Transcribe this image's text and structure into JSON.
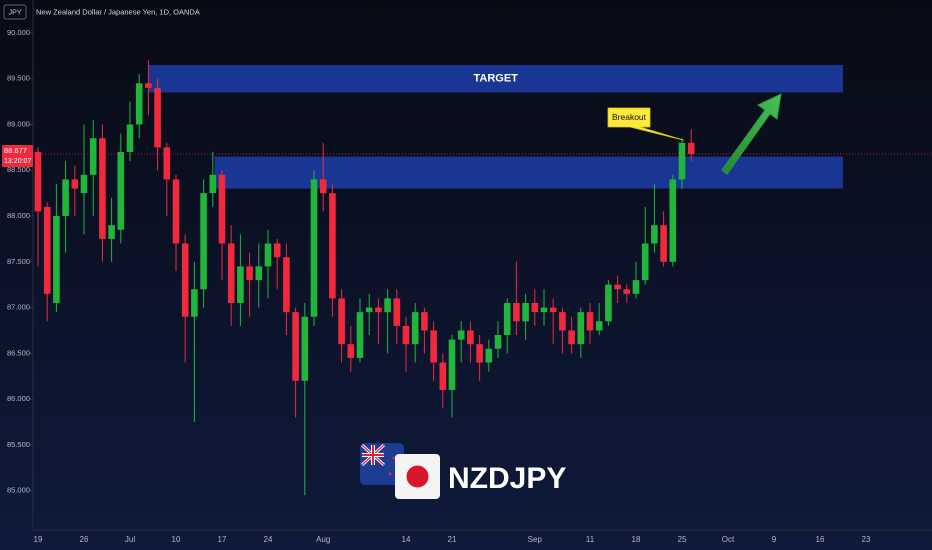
{
  "chart_data": {
    "type": "candlestick",
    "symbol_box": "JPY",
    "title": "New Zealand Dollar / Japanese Yen, 1D, OANDA",
    "watermark": "NZDJPY",
    "countdown": "13:20:07",
    "annotation": "Breakout",
    "up_color": "#22b53c",
    "down_color": "#f2283d",
    "categories": [
      "19",
      null,
      null,
      null,
      null,
      "26",
      null,
      null,
      null,
      null,
      "Jul",
      null,
      null,
      null,
      null,
      "10",
      null,
      null,
      null,
      null,
      "17",
      null,
      null,
      null,
      null,
      "24",
      null,
      null,
      null,
      null,
      null,
      "Aug",
      null,
      null,
      null,
      null,
      null,
      null,
      null,
      null,
      "14",
      null,
      null,
      null,
      null,
      "21",
      null,
      null,
      null,
      null,
      null,
      null,
      null,
      null,
      "Sep",
      null,
      null,
      null,
      null,
      null,
      "11",
      null,
      null,
      null,
      null,
      "18",
      null,
      null,
      null,
      null,
      "25",
      null,
      null,
      null,
      null,
      "Oct",
      null,
      null,
      null,
      null,
      "9",
      null,
      null,
      null,
      null,
      "16",
      null,
      null,
      null,
      null,
      "23"
    ],
    "open": [
      88.7,
      88.1,
      87.05,
      88.0,
      88.4,
      88.25,
      88.45,
      88.85,
      87.75,
      87.85,
      88.7,
      89.0,
      89.45,
      89.4,
      88.75,
      88.4,
      87.7,
      86.9,
      87.2,
      88.25,
      88.45,
      87.7,
      87.05,
      87.45,
      87.3,
      87.45,
      87.7,
      87.55,
      86.95,
      86.2,
      86.9,
      88.4,
      88.25,
      87.1,
      86.6,
      86.45,
      86.95,
      87.0,
      86.95,
      87.1,
      86.8,
      86.6,
      86.95,
      86.75,
      86.4,
      86.1,
      86.65,
      86.75,
      86.6,
      86.4,
      86.55,
      86.7,
      87.05,
      86.85,
      87.05,
      86.95,
      87.0,
      86.95,
      86.75,
      86.6,
      86.95,
      86.75,
      86.85,
      87.25,
      87.2,
      87.15,
      87.3,
      87.7,
      87.9,
      87.5,
      88.4,
      88.8,
      null,
      null,
      null,
      null,
      null,
      null,
      null,
      null,
      null,
      null,
      null,
      null,
      null,
      null,
      null,
      null,
      null,
      null,
      null
    ],
    "high": [
      88.75,
      88.15,
      88.35,
      88.6,
      88.55,
      89.0,
      89.05,
      89.0,
      88.2,
      88.9,
      89.25,
      89.55,
      89.7,
      89.5,
      88.8,
      88.45,
      87.8,
      87.5,
      88.4,
      88.7,
      88.5,
      87.9,
      87.8,
      87.6,
      87.7,
      87.85,
      87.75,
      87.7,
      87.0,
      87.05,
      88.5,
      88.8,
      88.35,
      87.2,
      86.8,
      87.1,
      87.15,
      87.1,
      87.2,
      87.2,
      86.9,
      87.05,
      87.0,
      86.85,
      86.5,
      86.7,
      86.85,
      86.85,
      86.7,
      86.65,
      86.85,
      87.1,
      87.5,
      87.15,
      87.2,
      87.2,
      87.1,
      87.0,
      86.9,
      87.0,
      87.05,
      87.05,
      87.3,
      87.35,
      87.25,
      87.5,
      88.1,
      88.35,
      88.05,
      88.45,
      88.85,
      88.95,
      null,
      null,
      null,
      null,
      null,
      null,
      null,
      null,
      null,
      null,
      null,
      null,
      null,
      null,
      null,
      null,
      null,
      null,
      null
    ],
    "low": [
      87.45,
      86.85,
      86.95,
      87.6,
      88.0,
      87.8,
      88.0,
      87.5,
      87.5,
      87.7,
      88.6,
      88.85,
      89.1,
      88.5,
      88.0,
      87.4,
      86.4,
      85.75,
      87.0,
      88.1,
      87.3,
      86.8,
      86.8,
      86.9,
      87.0,
      87.1,
      87.2,
      86.7,
      85.8,
      84.95,
      86.8,
      88.05,
      86.9,
      86.4,
      86.3,
      86.4,
      86.7,
      86.6,
      86.5,
      86.6,
      86.3,
      86.4,
      86.5,
      86.2,
      85.9,
      85.8,
      86.4,
      86.4,
      86.2,
      86.3,
      86.45,
      86.5,
      86.7,
      86.65,
      86.8,
      86.8,
      86.6,
      86.5,
      86.5,
      86.45,
      86.6,
      86.7,
      86.8,
      87.05,
      87.05,
      87.1,
      87.25,
      87.6,
      87.45,
      87.45,
      88.3,
      88.6,
      null,
      null,
      null,
      null,
      null,
      null,
      null,
      null,
      null,
      null,
      null,
      null,
      null,
      null,
      null,
      null,
      null,
      null,
      null
    ],
    "close": [
      88.05,
      87.15,
      88.0,
      88.4,
      88.3,
      88.45,
      88.85,
      87.75,
      87.9,
      88.7,
      89.0,
      89.45,
      89.4,
      88.75,
      88.4,
      87.7,
      86.9,
      87.2,
      88.25,
      88.45,
      87.7,
      87.05,
      87.45,
      87.3,
      87.45,
      87.7,
      87.55,
      86.95,
      86.2,
      86.9,
      88.4,
      88.25,
      87.1,
      86.6,
      86.45,
      86.95,
      87.0,
      86.95,
      87.1,
      86.8,
      86.6,
      86.95,
      86.75,
      86.4,
      86.1,
      86.65,
      86.75,
      86.6,
      86.4,
      86.55,
      86.7,
      87.05,
      86.85,
      87.05,
      86.95,
      87.0,
      86.95,
      86.75,
      86.6,
      86.95,
      86.75,
      86.85,
      87.25,
      87.2,
      87.15,
      87.3,
      87.7,
      87.9,
      87.5,
      88.4,
      88.8,
      88.677,
      null,
      null,
      null,
      null,
      null,
      null,
      null,
      null,
      null,
      null,
      null,
      null,
      null,
      null,
      null,
      null,
      null,
      null,
      null
    ],
    "zones": [
      {
        "label": "TARGET",
        "low": 89.35,
        "high": 89.65,
        "start": 12,
        "end": 87.5,
        "color": "#1b3a9e"
      },
      {
        "low": 88.3,
        "high": 88.65,
        "start": 19.2,
        "end": 87.5,
        "color": "#1b3a9e"
      }
    ],
    "ylim": [
      84.57,
      90.36
    ],
    "yticks": [
      {
        "value": 85,
        "label": "85.000"
      },
      {
        "value": 85.5,
        "label": "85.500"
      },
      {
        "value": 86,
        "label": "86.000"
      },
      {
        "value": 86.5,
        "label": "86.500"
      },
      {
        "value": 87,
        "label": "87.000"
      },
      {
        "value": 87.5,
        "label": "87.500"
      },
      {
        "value": 88,
        "label": "88.000"
      },
      {
        "value": 88.5,
        "label": "88.500"
      },
      {
        "value": 89,
        "label": "89.000"
      },
      {
        "value": 89.5,
        "label": "89.500"
      },
      {
        "value": 90,
        "label": "90.000"
      }
    ]
  }
}
